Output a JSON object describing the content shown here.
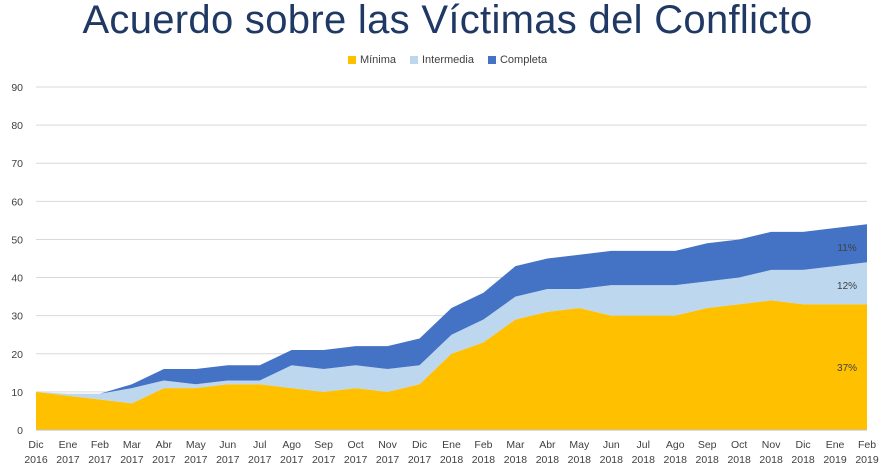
{
  "chart_data": {
    "type": "area",
    "stacked": true,
    "title": "Acuerdo sobre las Víctimas del Conflicto",
    "categories": [
      [
        "Dic",
        "2016"
      ],
      [
        "Ene",
        "2017"
      ],
      [
        "Feb",
        "2017"
      ],
      [
        "Mar",
        "2017"
      ],
      [
        "Abr",
        "2017"
      ],
      [
        "May",
        "2017"
      ],
      [
        "Jun",
        "2017"
      ],
      [
        "Jul",
        "2017"
      ],
      [
        "Ago",
        "2017"
      ],
      [
        "Sep",
        "2017"
      ],
      [
        "Oct",
        "2017"
      ],
      [
        "Nov",
        "2017"
      ],
      [
        "Dic",
        "2017"
      ],
      [
        "Ene",
        "2018"
      ],
      [
        "Feb",
        "2018"
      ],
      [
        "Mar",
        "2018"
      ],
      [
        "Abr",
        "2018"
      ],
      [
        "May",
        "2018"
      ],
      [
        "Jun",
        "2018"
      ],
      [
        "Jul",
        "2018"
      ],
      [
        "Ago",
        "2018"
      ],
      [
        "Sep",
        "2018"
      ],
      [
        "Oct",
        "2018"
      ],
      [
        "Nov",
        "2018"
      ],
      [
        "Dic",
        "2018"
      ],
      [
        "Ene",
        "2019"
      ],
      [
        "Feb",
        "2019"
      ]
    ],
    "series": [
      {
        "name": "Mínima",
        "color": "#ffc000",
        "values": [
          10,
          9,
          8,
          7,
          11,
          11,
          12,
          12,
          11,
          10,
          11,
          10,
          12,
          20,
          23,
          29,
          31,
          32,
          30,
          30,
          30,
          32,
          33,
          34,
          33,
          33,
          33
        ]
      },
      {
        "name": "Intermedia",
        "color": "#bdd7ee",
        "values": [
          0,
          0.5,
          1.5,
          4,
          2,
          1,
          1,
          1,
          6,
          6,
          6,
          6,
          5,
          5,
          6,
          6,
          6,
          5,
          8,
          8,
          8,
          7,
          7,
          8,
          9,
          10,
          11
        ]
      },
      {
        "name": "Completa",
        "color": "#4472c4",
        "values": [
          0,
          0,
          0,
          1,
          3,
          4,
          4,
          4,
          4,
          5,
          5,
          6,
          7,
          7,
          7,
          8,
          8,
          9,
          9,
          9,
          9,
          10,
          10,
          10,
          10,
          10,
          10
        ]
      }
    ],
    "ylim": [
      0,
      90
    ],
    "yticks": [
      0,
      10,
      20,
      30,
      40,
      50,
      60,
      70,
      80,
      90
    ],
    "grid": true,
    "legend_position": "top-center",
    "annotations": [
      {
        "series": "Completa",
        "text": "11%"
      },
      {
        "series": "Intermedia",
        "text": "12%"
      },
      {
        "series": "Mínima",
        "text": "37%"
      }
    ]
  }
}
